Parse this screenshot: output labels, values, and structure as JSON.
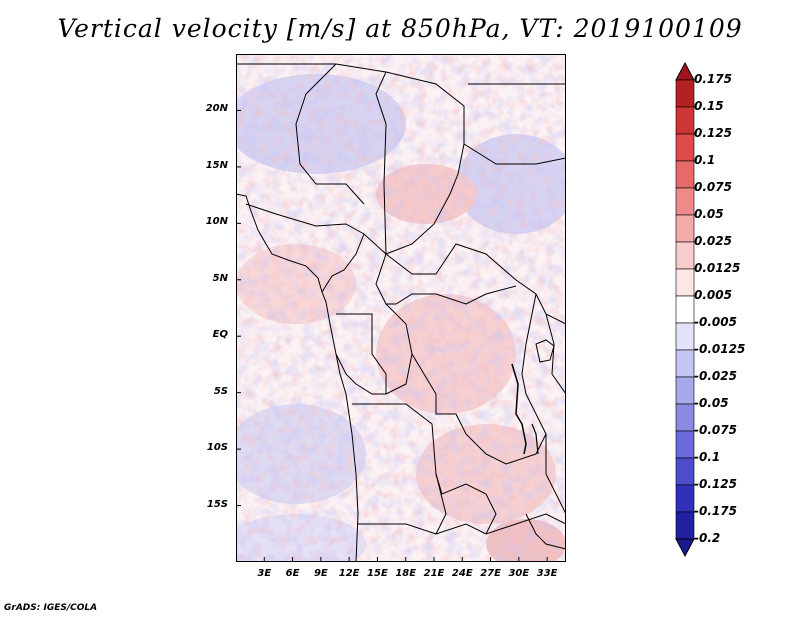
{
  "title": "Vertical velocity [m/s] at 850hPa, VT: 2019100109",
  "footer": "GrADS: IGES/COLA",
  "map": {
    "lon_range": [
      0,
      35
    ],
    "lat_range": [
      -20,
      25
    ],
    "lat_ticks": [
      "20N",
      "15N",
      "10N",
      "5N",
      "EQ",
      "5S",
      "10S",
      "15S"
    ],
    "lat_values": [
      20,
      15,
      10,
      5,
      0,
      -5,
      -10,
      -15
    ],
    "lon_ticks": [
      "3E",
      "6E",
      "9E",
      "12E",
      "15E",
      "18E",
      "21E",
      "24E",
      "27E",
      "30E",
      "33E"
    ],
    "lon_values": [
      3,
      6,
      9,
      12,
      15,
      18,
      21,
      24,
      27,
      30,
      33
    ]
  },
  "colorbar": {
    "labels": [
      "0.175",
      "0.15",
      "0.125",
      "0.1",
      "0.075",
      "0.05",
      "0.025",
      "0.0125",
      "0.005",
      "-0.005",
      "-0.0125",
      "-0.025",
      "-0.05",
      "-0.075",
      "-0.1",
      "-0.125",
      "-0.175",
      "-0.2"
    ],
    "colors": [
      "#a0141e",
      "#b22222",
      "#cd3636",
      "#dc4a4a",
      "#e56a6a",
      "#ee8a8a",
      "#f4aaaa",
      "#f9cccc",
      "#fde6e6",
      "#ffffff",
      "#e2e2fb",
      "#c6c6f4",
      "#a8a8ed",
      "#8a8ae3",
      "#6a6ad8",
      "#4c4ccc",
      "#3030b8",
      "#2020a0",
      "#1a1a90"
    ]
  }
}
